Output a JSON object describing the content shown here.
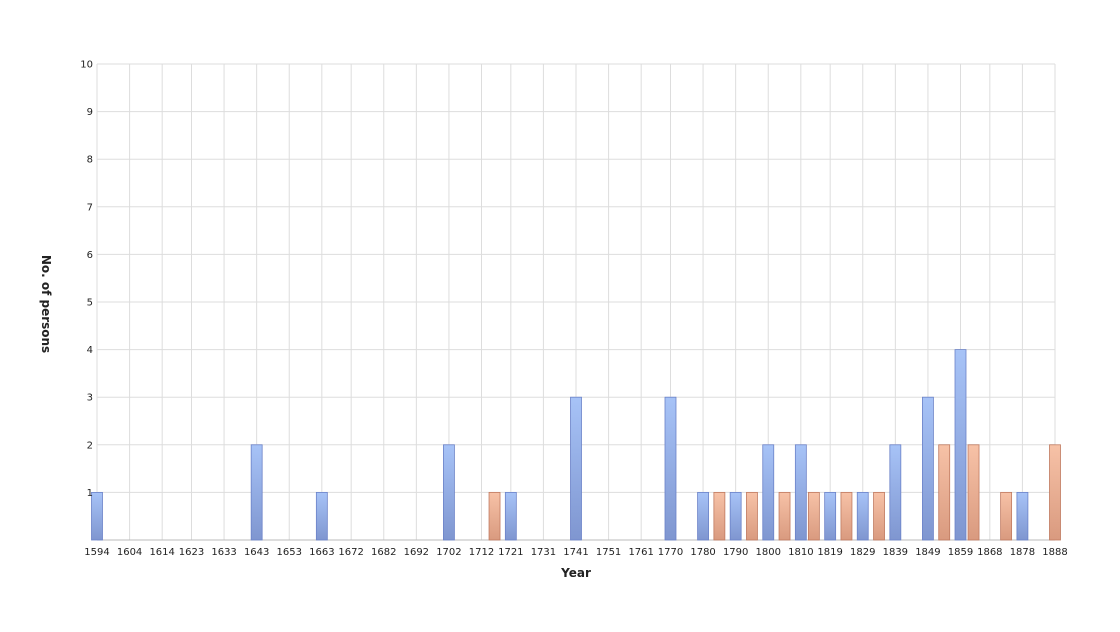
{
  "chart_data": {
    "type": "bar",
    "title": "",
    "xlabel": "Year",
    "ylabel": "No. of persons",
    "ylim": [
      0,
      10
    ],
    "yticks": [
      "1",
      "2",
      "3",
      "4",
      "5",
      "6",
      "7",
      "8",
      "9",
      "10"
    ],
    "xlim": [
      1594,
      1888
    ],
    "xticks": [
      "1594",
      "1604",
      "1614",
      "1623",
      "1633",
      "1643",
      "1653",
      "1663",
      "1672",
      "1682",
      "1692",
      "1702",
      "1712",
      "1721",
      "1731",
      "1741",
      "1751",
      "1761",
      "1770",
      "1780",
      "1790",
      "1800",
      "1810",
      "1819",
      "1829",
      "1839",
      "1849",
      "1859",
      "1868",
      "1878",
      "1888"
    ],
    "grid": true,
    "legend": "none",
    "series": [
      {
        "color_top": "#a7c3f7",
        "color_bottom": "#7f96d0",
        "stroke": "#6b82c8",
        "points": [
          {
            "x": 1594,
            "y": 1
          },
          {
            "x": 1643,
            "y": 2
          },
          {
            "x": 1663,
            "y": 1
          },
          {
            "x": 1702,
            "y": 2
          },
          {
            "x": 1721,
            "y": 1
          },
          {
            "x": 1741,
            "y": 3
          },
          {
            "x": 1770,
            "y": 3
          },
          {
            "x": 1780,
            "y": 1
          },
          {
            "x": 1790,
            "y": 1
          },
          {
            "x": 1800,
            "y": 2
          },
          {
            "x": 1810,
            "y": 2
          },
          {
            "x": 1819,
            "y": 1
          },
          {
            "x": 1829,
            "y": 1
          },
          {
            "x": 1839,
            "y": 2
          },
          {
            "x": 1849,
            "y": 3
          },
          {
            "x": 1859,
            "y": 4
          },
          {
            "x": 1878,
            "y": 1
          }
        ]
      },
      {
        "color_top": "#f7c2a7",
        "color_bottom": "#d99a7f",
        "stroke": "#c07a60",
        "points": [
          {
            "x": 1716,
            "y": 1
          },
          {
            "x": 1785,
            "y": 1
          },
          {
            "x": 1795,
            "y": 1
          },
          {
            "x": 1805,
            "y": 1
          },
          {
            "x": 1814,
            "y": 1
          },
          {
            "x": 1824,
            "y": 1
          },
          {
            "x": 1834,
            "y": 1
          },
          {
            "x": 1854,
            "y": 2
          },
          {
            "x": 1863,
            "y": 2
          },
          {
            "x": 1873,
            "y": 1
          },
          {
            "x": 1888,
            "y": 2
          }
        ]
      }
    ]
  }
}
